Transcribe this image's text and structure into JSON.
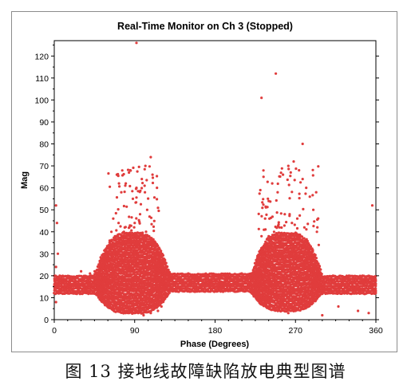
{
  "chart_data": {
    "type": "scatter",
    "title": "Real-Time Monitor on Ch 3 (Stopped)",
    "xlabel": "Phase (Degrees)",
    "ylabel": "Mag",
    "xlim": [
      0,
      360
    ],
    "ylim": [
      0,
      127
    ],
    "x_ticks": [
      0,
      90,
      180,
      270,
      360
    ],
    "y_ticks": [
      0,
      10,
      20,
      30,
      40,
      50,
      60,
      70,
      80,
      90,
      100,
      110,
      120
    ],
    "grid": false,
    "marker_color": "#e03c3c",
    "series": [
      {
        "values_description_free": true,
        "points": [
          [
            2,
            8
          ],
          [
            2,
            16
          ],
          [
            2,
            24
          ],
          [
            3,
            44
          ],
          [
            2,
            52
          ],
          [
            4,
            30
          ],
          [
            30,
            22
          ],
          [
            40,
            21
          ],
          [
            48,
            20
          ],
          [
            55,
            24
          ],
          [
            60,
            28
          ],
          [
            62,
            36
          ],
          [
            66,
            46
          ],
          [
            70,
            66
          ],
          [
            75,
            58
          ],
          [
            80,
            62
          ],
          [
            85,
            68
          ],
          [
            88,
            55
          ],
          [
            92,
            60
          ],
          [
            98,
            64
          ],
          [
            102,
            70
          ],
          [
            108,
            74
          ],
          [
            110,
            66
          ],
          [
            115,
            60
          ],
          [
            104,
            50
          ],
          [
            96,
            48
          ],
          [
            90,
            44
          ],
          [
            84,
            42
          ],
          [
            78,
            40
          ],
          [
            72,
            44
          ],
          [
            68,
            38
          ],
          [
            64,
            40
          ],
          [
            92,
            126
          ],
          [
            102,
            34
          ],
          [
            110,
            36
          ],
          [
            118,
            30
          ],
          [
            122,
            26
          ],
          [
            125,
            24
          ],
          [
            120,
            6
          ],
          [
            116,
            4
          ],
          [
            108,
            3
          ],
          [
            100,
            2
          ],
          [
            94,
            3
          ],
          [
            86,
            4
          ],
          [
            80,
            6
          ],
          [
            74,
            8
          ],
          [
            150,
            21
          ],
          [
            170,
            20
          ],
          [
            190,
            20
          ],
          [
            210,
            21
          ],
          [
            225,
            24
          ],
          [
            230,
            30
          ],
          [
            232,
            38
          ],
          [
            236,
            46
          ],
          [
            240,
            54
          ],
          [
            244,
            62
          ],
          [
            250,
            58
          ],
          [
            256,
            66
          ],
          [
            262,
            70
          ],
          [
            268,
            72
          ],
          [
            274,
            68
          ],
          [
            278,
            64
          ],
          [
            282,
            60
          ],
          [
            286,
            56
          ],
          [
            290,
            50
          ],
          [
            294,
            40
          ],
          [
            296,
            34
          ],
          [
            258,
            48
          ],
          [
            266,
            44
          ],
          [
            272,
            46
          ],
          [
            280,
            42
          ],
          [
            252,
            42
          ],
          [
            246,
            40
          ],
          [
            240,
            38
          ],
          [
            270,
            4
          ],
          [
            262,
            3
          ],
          [
            254,
            4
          ],
          [
            246,
            6
          ],
          [
            240,
            8
          ],
          [
            278,
            5
          ],
          [
            286,
            7
          ],
          [
            232,
            101
          ],
          [
            248,
            112
          ],
          [
            278,
            80
          ],
          [
            300,
            2
          ],
          [
            318,
            6
          ],
          [
            340,
            4
          ],
          [
            352,
            3
          ],
          [
            356,
            52
          ],
          [
            330,
            20
          ],
          [
            345,
            20
          ],
          [
            358,
            19
          ],
          [
            312,
            20
          ],
          [
            302,
            19
          ]
        ],
        "band_description": [
          {
            "x_start": 0,
            "x_end": 45,
            "y_low": 12,
            "y_high": 20
          },
          {
            "x_start": 45,
            "x_end": 130,
            "y_low": 3,
            "y_high": 40
          },
          {
            "x_start": 130,
            "x_end": 220,
            "y_low": 13,
            "y_high": 21
          },
          {
            "x_start": 220,
            "x_end": 300,
            "y_low": 4,
            "y_high": 40
          },
          {
            "x_start": 300,
            "x_end": 360,
            "y_low": 12,
            "y_high": 20
          }
        ]
      }
    ]
  },
  "caption": "图 13  接地线故障缺陷放电典型图谱"
}
